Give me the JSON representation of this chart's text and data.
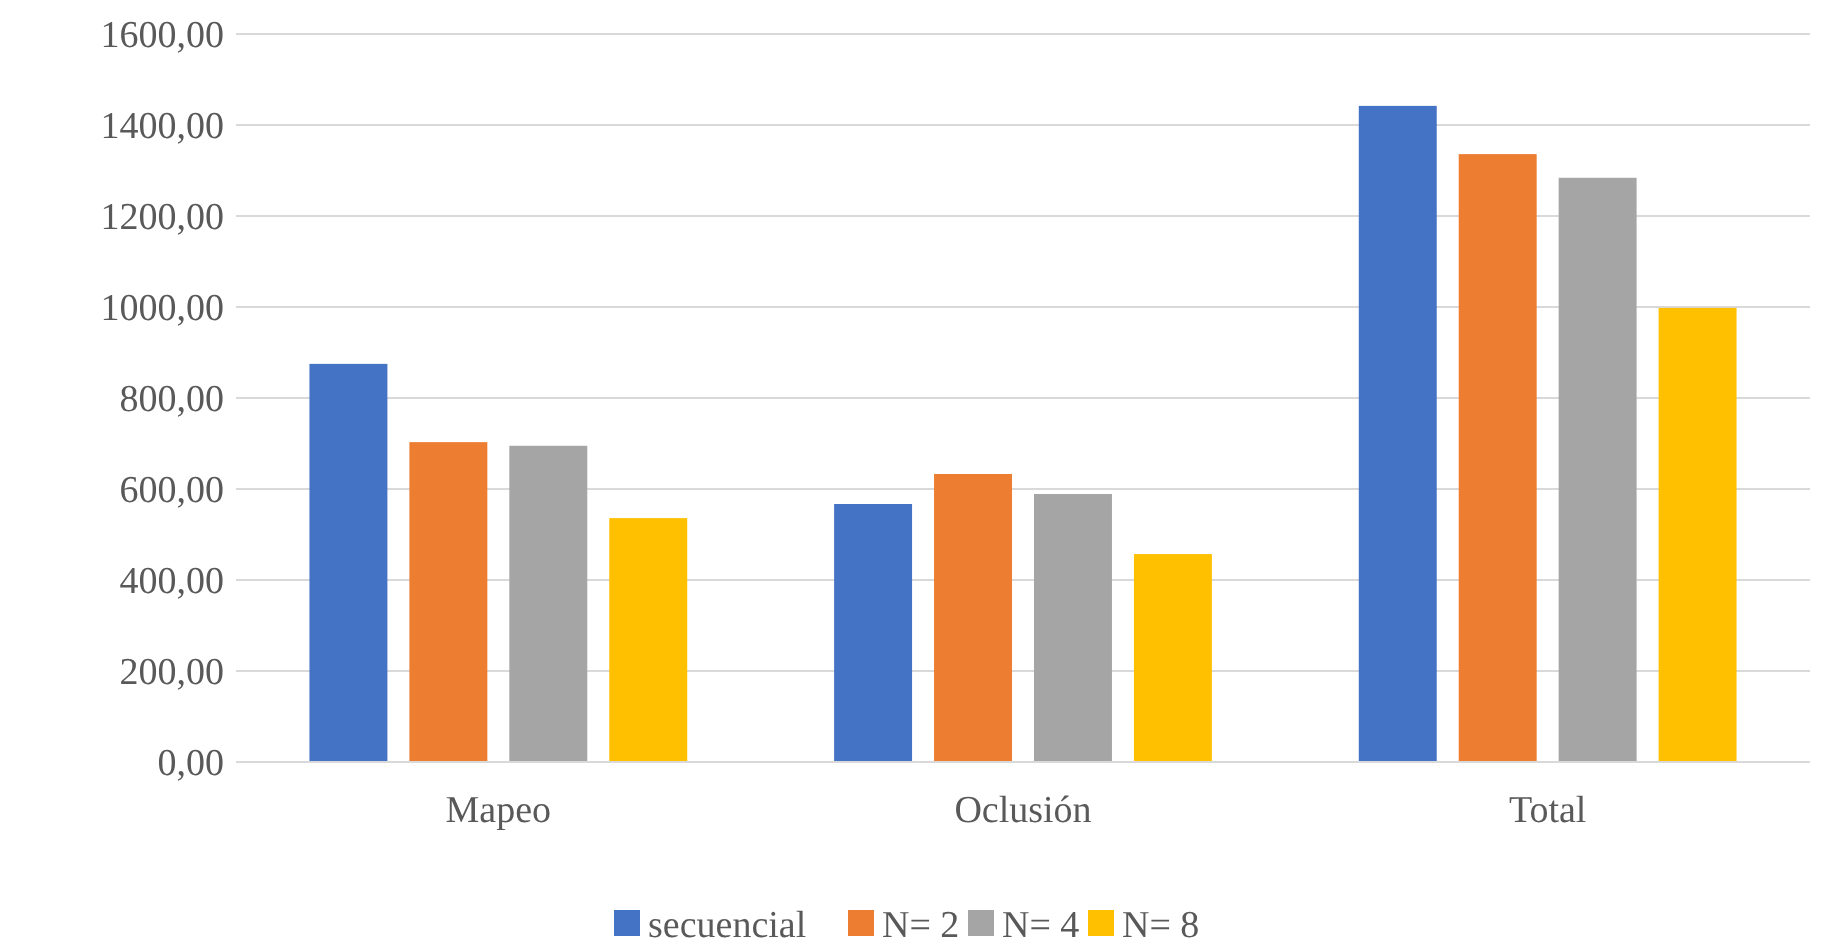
{
  "chart_data": {
    "type": "bar",
    "categories": [
      "Mapeo",
      "Oclusión",
      "Total"
    ],
    "series": [
      {
        "name": "secuencial",
        "color": "#4472c4",
        "values": [
          875,
          567,
          1442
        ]
      },
      {
        "name": "N= 2",
        "color": "#ed7d31",
        "values": [
          703,
          633,
          1336
        ]
      },
      {
        "name": "N= 4",
        "color": "#a5a5a5",
        "values": [
          695,
          589,
          1284
        ]
      },
      {
        "name": "N= 8",
        "color": "#ffc000",
        "values": [
          536,
          457,
          998
        ]
      }
    ],
    "ylim": [
      0,
      1600
    ],
    "yticks": [
      {
        "value": 0,
        "label": "0,00"
      },
      {
        "value": 200,
        "label": "200,00"
      },
      {
        "value": 400,
        "label": "400,00"
      },
      {
        "value": 600,
        "label": "600,00"
      },
      {
        "value": 800,
        "label": "800,00"
      },
      {
        "value": 1000,
        "label": "1000,00"
      },
      {
        "value": 1200,
        "label": "1200,00"
      },
      {
        "value": 1400,
        "label": "1400,00"
      },
      {
        "value": 1600,
        "label": "1600,00"
      }
    ],
    "grid": "y",
    "legend": "bottom"
  }
}
